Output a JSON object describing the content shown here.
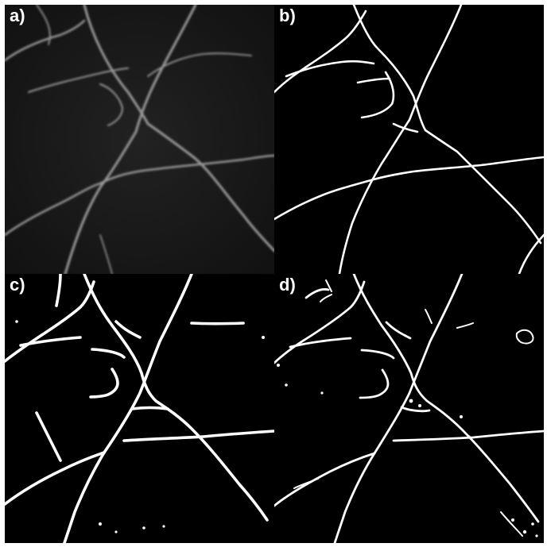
{
  "panels": [
    {
      "label": "a)"
    },
    {
      "label": "b)"
    },
    {
      "label": "c)"
    },
    {
      "label": "d)"
    }
  ],
  "colors": {
    "background": "#000000",
    "trace": "#ffffff",
    "grayscale_trace": "#9a9a9a",
    "gutter": "#ffffff"
  }
}
